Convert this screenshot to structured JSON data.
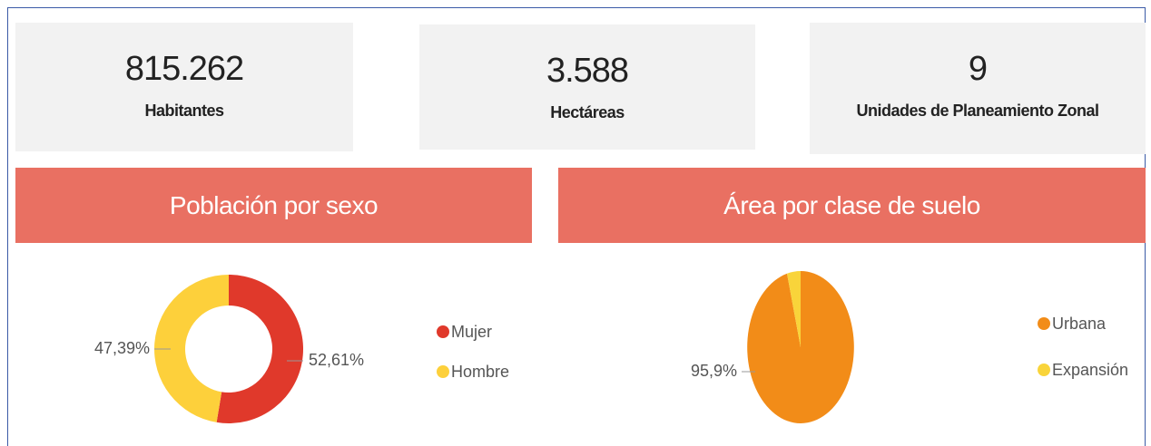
{
  "kpis": [
    {
      "value": "815.262",
      "label": "Habitantes"
    },
    {
      "value": "3.588",
      "label": "Hectáreas"
    },
    {
      "value": "9",
      "label": "Unidades de Planeamiento Zonal"
    }
  ],
  "chart_data": [
    {
      "type": "donut",
      "title": "Población por sexo",
      "categories": [
        "Mujer",
        "Hombre"
      ],
      "values": [
        52.61,
        47.39
      ],
      "value_labels": [
        "52,61%",
        "47,39%"
      ],
      "colors": [
        "#e0392b",
        "#fdd03b"
      ]
    },
    {
      "type": "pie",
      "title": "Área por clase de suelo",
      "categories": [
        "Urbana",
        "Expansión"
      ],
      "values": [
        95.9,
        4.1
      ],
      "value_labels": [
        "95,9%",
        null
      ],
      "colors": [
        "#f28c18",
        "#f9d43a"
      ]
    }
  ]
}
